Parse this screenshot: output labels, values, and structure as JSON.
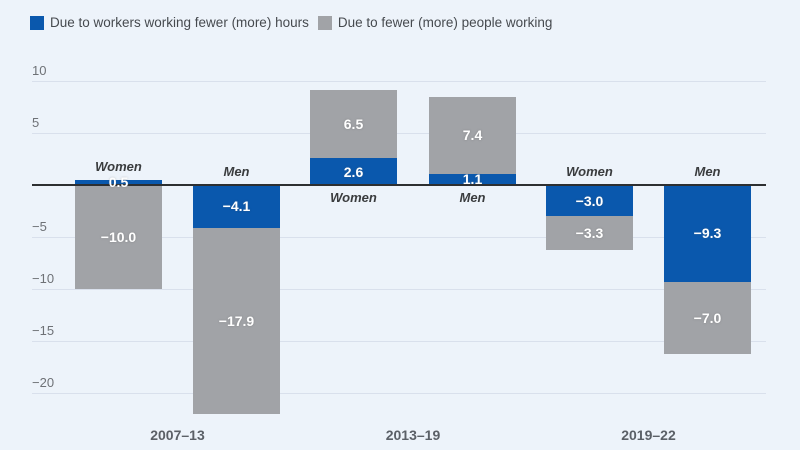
{
  "chart_data": {
    "type": "bar",
    "stacked": true,
    "orientation": "vertical",
    "grid": true,
    "legend_position": "top-left",
    "ylim": [
      -22.5,
      10.5
    ],
    "yticks": [
      10,
      5,
      -5,
      -10,
      -15,
      -20
    ],
    "series": [
      {
        "key": "hours",
        "name": "Due to workers working fewer (more) hours",
        "color": "#0a58ad"
      },
      {
        "key": "people",
        "name": "Due to fewer (more) people working",
        "color": "#a1a3a7"
      }
    ],
    "groups": [
      {
        "period": "2007–13",
        "bars": [
          {
            "label": "Women",
            "hours": 0.5,
            "people": -10.0,
            "hours_label": "0.5",
            "people_label": "−10.0"
          },
          {
            "label": "Men",
            "hours": -4.1,
            "people": -17.9,
            "hours_label": "−4.1",
            "people_label": "−17.9"
          }
        ]
      },
      {
        "period": "2013–19",
        "bars": [
          {
            "label": "Women",
            "hours": 2.6,
            "people": 6.5,
            "hours_label": "2.6",
            "people_label": "6.5"
          },
          {
            "label": "Men",
            "hours": 1.1,
            "people": 7.4,
            "hours_label": "1.1",
            "people_label": "7.4"
          }
        ]
      },
      {
        "period": "2019–22",
        "bars": [
          {
            "label": "Women",
            "hours": -3.0,
            "people": -3.3,
            "hours_label": "−3.0",
            "people_label": "−3.3"
          },
          {
            "label": "Men",
            "hours": -9.3,
            "people": -7.0,
            "hours_label": "−9.3",
            "people_label": "−7.0"
          }
        ]
      }
    ]
  }
}
